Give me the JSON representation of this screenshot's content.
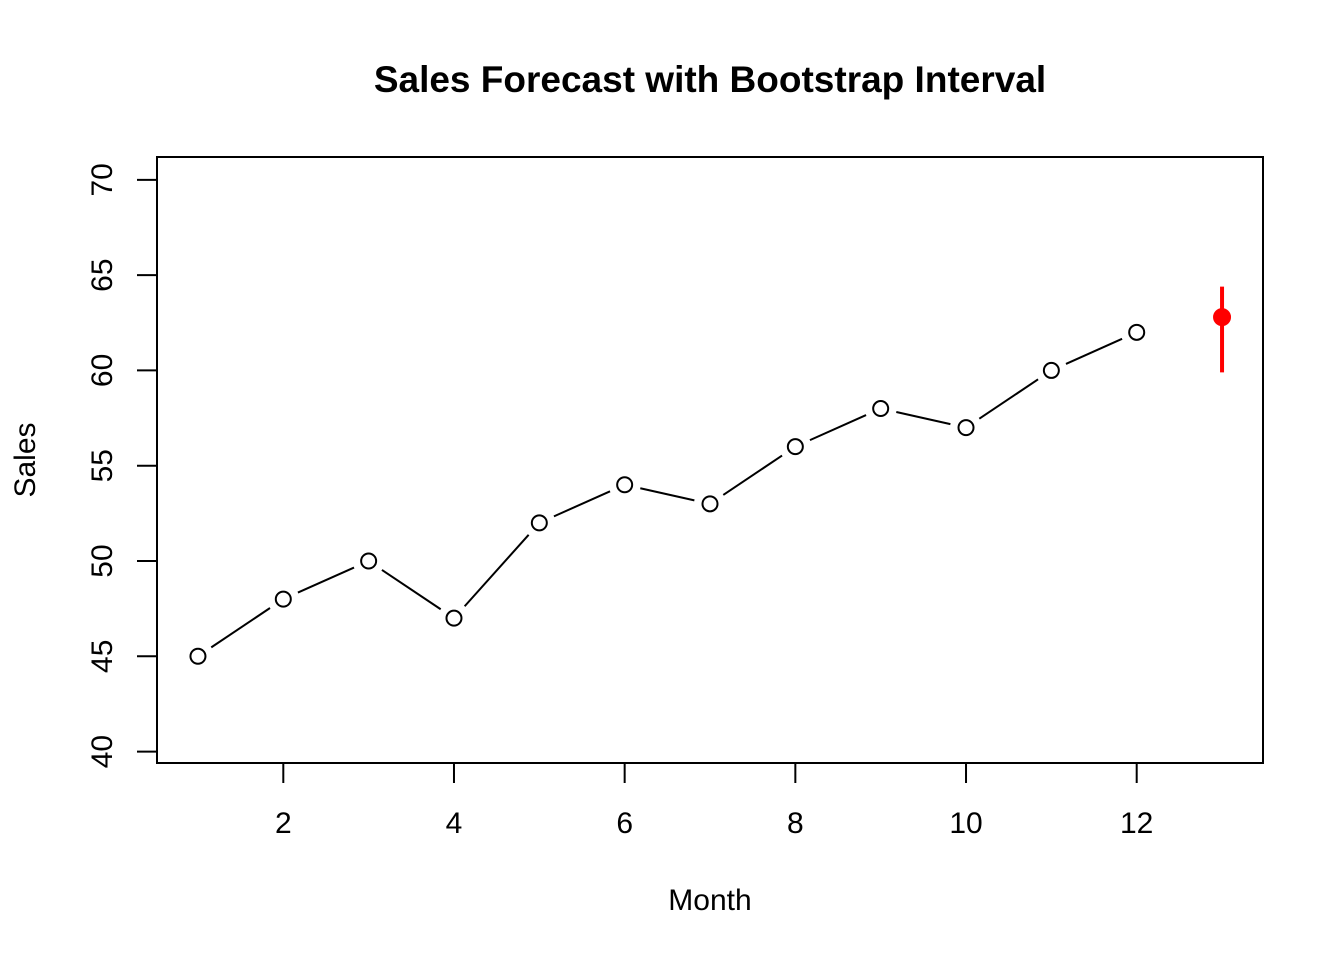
{
  "chart_data": {
    "type": "line",
    "title": "Sales Forecast with Bootstrap Interval",
    "xlabel": "Month",
    "ylabel": "Sales",
    "xlim": [
      0.52,
      13.48
    ],
    "ylim": [
      39.4,
      71.2
    ],
    "x_ticks": [
      2,
      4,
      6,
      8,
      10,
      12
    ],
    "y_ticks": [
      40,
      45,
      50,
      55,
      60,
      65,
      70
    ],
    "grid": false,
    "series": [
      {
        "x": [
          1,
          2,
          3,
          4,
          5,
          6,
          7,
          8,
          9,
          10,
          11,
          12
        ],
        "values": [
          45,
          48,
          50,
          47,
          52,
          54,
          53,
          56,
          58,
          57,
          60,
          62
        ],
        "color": "#000000",
        "marker": "open-circle"
      }
    ],
    "forecast": {
      "x": 13,
      "value": 62.8,
      "lower": 59.9,
      "upper": 64.4,
      "color": "#ff0000"
    }
  }
}
